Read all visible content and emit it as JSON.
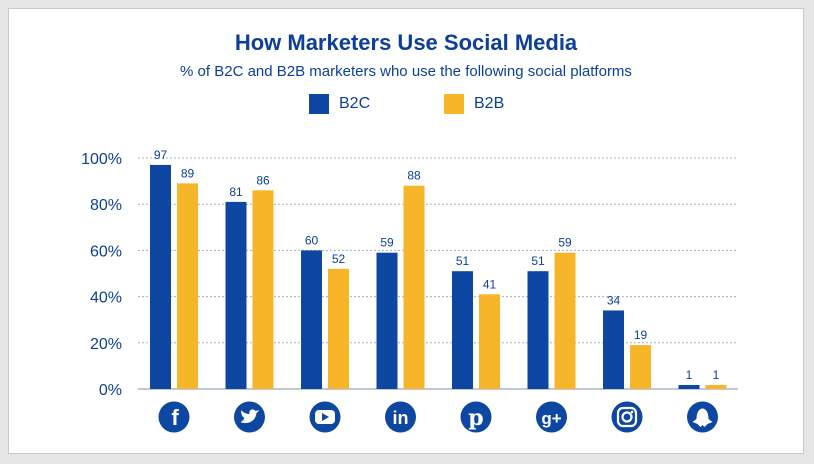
{
  "chart_data": {
    "type": "bar",
    "title": "How Marketers Use Social Media",
    "subtitle": "% of B2C and B2B marketers who use the following social platforms",
    "categories": [
      "Facebook",
      "Twitter",
      "YouTube",
      "LinkedIn",
      "Pinterest",
      "Google+",
      "Instagram",
      "Snapchat"
    ],
    "category_icons": [
      "facebook-icon",
      "twitter-icon",
      "youtube-icon",
      "linkedin-icon",
      "pinterest-icon",
      "google-plus-icon",
      "instagram-icon",
      "snapchat-icon"
    ],
    "series": [
      {
        "name": "B2C",
        "color": "#0d47a1",
        "values": [
          97,
          81,
          60,
          59,
          51,
          51,
          34,
          1
        ]
      },
      {
        "name": "B2B",
        "color": "#f7b529",
        "values": [
          89,
          86,
          52,
          88,
          41,
          59,
          19,
          1
        ]
      }
    ],
    "ylim": [
      0,
      100
    ],
    "yticks": [
      "0%",
      "20%",
      "40%",
      "60%",
      "80%",
      "100%"
    ],
    "grid": true,
    "legend_position": "top-center"
  }
}
